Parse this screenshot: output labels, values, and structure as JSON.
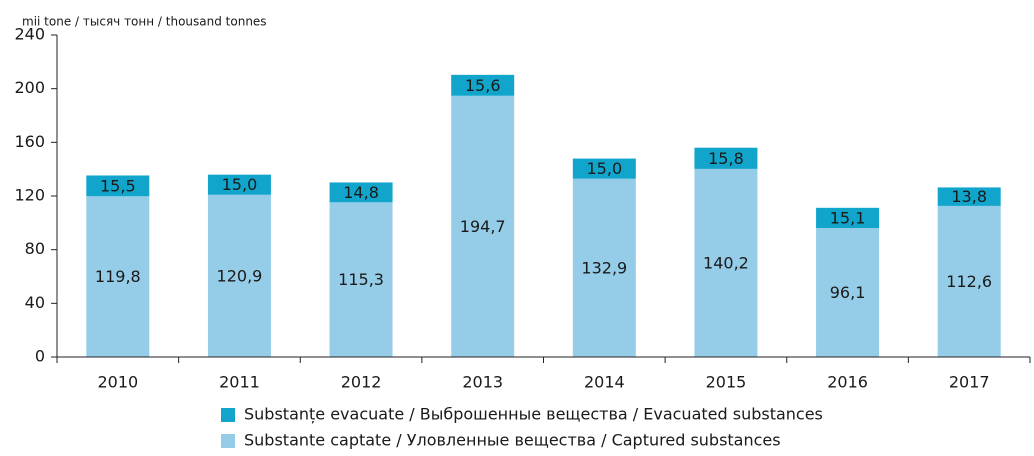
{
  "chart_data": {
    "type": "stacked_bar",
    "y_label": "mii tone / тысяч тонн / thousand tonnes",
    "categories": [
      "2010",
      "2011",
      "2012",
      "2013",
      "2014",
      "2015",
      "2016",
      "2017"
    ],
    "series": [
      {
        "name": "Substante captate / Уловленные вещества / Captured substances",
        "color": "#95cde8",
        "values": [
          119.8,
          120.9,
          115.3,
          194.7,
          132.9,
          140.2,
          96.1,
          112.6
        ],
        "value_labels": [
          "119,8",
          "120,9",
          "115,3",
          "194,7",
          "132,9",
          "140,2",
          "96,1",
          "112,6"
        ]
      },
      {
        "name": "Substanțe evacuate / Выброшенные вещества / Evacuated substances",
        "color": "#12a5cc",
        "values": [
          15.5,
          15.0,
          14.8,
          15.6,
          15.0,
          15.8,
          15.1,
          13.8
        ],
        "value_labels": [
          "15,5",
          "15,0",
          "14,8",
          "15,6",
          "15,0",
          "15,8",
          "15,1",
          "13,8"
        ]
      }
    ],
    "ylim": [
      0,
      240
    ],
    "yticks": [
      0,
      40,
      80,
      120,
      160,
      200,
      240
    ]
  }
}
